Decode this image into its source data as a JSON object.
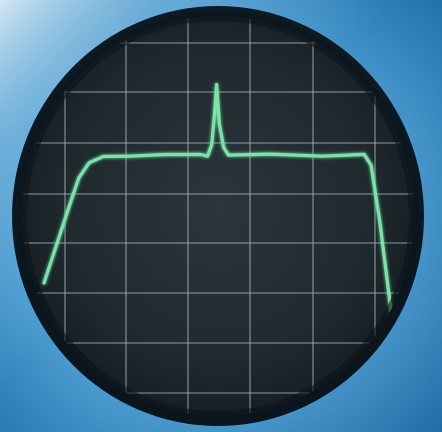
{
  "scene": {
    "subject": "oscilloscope-screen",
    "colors": {
      "background_light": "#c9e3f5",
      "background_mid": "#5ea8d8",
      "background_dark": "#1d6ea8",
      "bezel_dark": "#0f1e2a",
      "screen": "#1f2a2f",
      "screen_center": "#283339",
      "grid_line": "#a7b4ba",
      "trace": "#7be3a8"
    }
  },
  "trace": {
    "shape": "flat-top pulse with narrow spike",
    "points": [
      [
        0,
        0.0
      ],
      [
        4,
        0.33
      ],
      [
        8,
        0.66
      ],
      [
        10,
        0.82
      ],
      [
        13,
        0.94
      ],
      [
        17,
        0.98
      ],
      [
        25,
        1.0
      ],
      [
        35,
        1.0
      ],
      [
        45,
        1.0
      ],
      [
        47,
        1.0
      ],
      [
        48.2,
        1.08
      ],
      [
        49.0,
        1.32
      ],
      [
        49.6,
        1.55
      ],
      [
        50.4,
        1.24
      ],
      [
        51.6,
        1.06
      ],
      [
        53,
        1.0
      ],
      [
        65,
        1.0
      ],
      [
        80,
        1.0
      ],
      [
        92,
        1.0
      ],
      [
        94,
        0.92
      ],
      [
        96.5,
        0.48
      ],
      [
        100,
        -0.28
      ]
    ]
  }
}
